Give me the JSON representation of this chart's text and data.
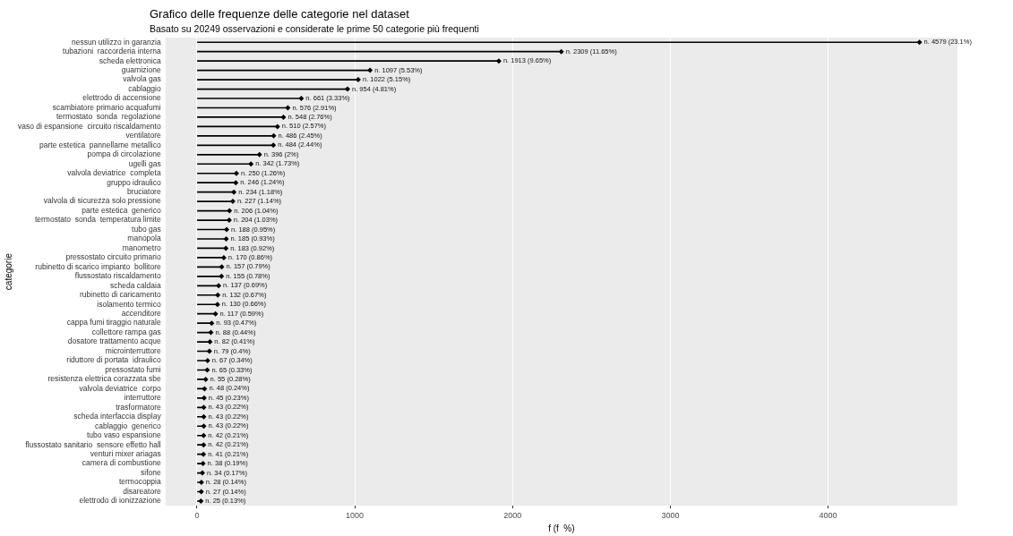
{
  "chart_data": {
    "type": "lollipop",
    "orientation": "horizontal",
    "title": "Grafico delle frequenze delle categorie nel dataset",
    "subtitle": "Basato su 20249 osservazioni e considerate le prime 50 categorie più frequenti",
    "xlabel": "f (f  %)",
    "ylabel": "categorie",
    "categories": [
      "nessun utilizzo in garanzia",
      "tubazioni  raccorderia interna",
      "scheda elettronica",
      "guarnizione",
      "valvola gas",
      "cablaggio",
      "elettrodo di accensione",
      "scambiatore primario acquafumi",
      "termostato  sonda  regolazione",
      "vaso di espansione  circuito riscaldamento",
      "ventilatore",
      "parte estetica  pannellame metallico",
      "pompa di circolazione",
      "ugelli gas",
      "valvola deviatrice  completa",
      "gruppo idraulico",
      "bruciatore",
      "valvola di sicurezza solo pressione",
      "parte estetica  generico",
      "termostato  sonda  temperatura limite",
      "tubo gas",
      "manopola",
      "manometro",
      "pressostato circuito primario",
      "rubinetto di scarico impianto  bollitore",
      "flussostato riscaldamento",
      "scheda caldaia",
      "rubinetto di caricamento",
      "isolamento termico",
      "accenditore",
      "cappa fumi tiraggio naturale",
      "collettore rampa gas",
      "dosatore trattamento acque",
      "microinterruttore",
      "riduttore di portata  idraulico",
      "pressostato fumi",
      "resistenza elettrica corazzata sbe",
      "valvola deviatrice  corpo",
      "interruttore",
      "trasformatore",
      "scheda interfaccia display",
      "cablaggio  generico",
      "tubo vaso espansione",
      "flussostato sanitario  sensore effetto hall",
      "venturi mixer ariagas",
      "camera di combustione",
      "sifone",
      "termocoppia",
      "disareatore",
      "elettrodo di ionizzazione"
    ],
    "values": [
      4579,
      2309,
      1913,
      1097,
      1022,
      954,
      661,
      576,
      548,
      510,
      486,
      484,
      396,
      342,
      250,
      246,
      234,
      227,
      206,
      204,
      188,
      185,
      183,
      170,
      157,
      155,
      137,
      132,
      130,
      117,
      93,
      88,
      82,
      79,
      67,
      65,
      55,
      48,
      45,
      43,
      43,
      43,
      42,
      42,
      41,
      38,
      34,
      28,
      27,
      25
    ],
    "value_labels": [
      "n. 4579 (23.1%)",
      "n. 2309 (11.65%)",
      "n. 1913 (9.65%)",
      "n. 1097 (5.53%)",
      "n. 1022 (5.15%)",
      "n. 954 (4.81%)",
      "n. 661 (3.33%)",
      "n. 576 (2.91%)",
      "n. 548 (2.76%)",
      "n. 510 (2.57%)",
      "n. 486 (2.45%)",
      "n. 484 (2.44%)",
      "n. 396 (2%)",
      "n. 342 (1.73%)",
      "n. 250 (1.26%)",
      "n. 246 (1.24%)",
      "n. 234 (1.18%)",
      "n. 227 (1.14%)",
      "n. 206 (1.04%)",
      "n. 204 (1.03%)",
      "n. 188 (0.95%)",
      "n. 185 (0.93%)",
      "n. 183 (0.92%)",
      "n. 170 (0.86%)",
      "n. 157 (0.79%)",
      "n. 155 (0.78%)",
      "n. 137 (0.69%)",
      "n. 132 (0.67%)",
      "n. 130 (0.66%)",
      "n. 117 (0.59%)",
      "n. 93 (0.47%)",
      "n. 88 (0.44%)",
      "n. 82 (0.41%)",
      "n. 79 (0.4%)",
      "n. 67 (0.34%)",
      "n. 65 (0.33%)",
      "n. 55 (0.28%)",
      "n. 48 (0.24%)",
      "n. 45 (0.23%)",
      "n. 43 (0.22%)",
      "n. 43 (0.22%)",
      "n. 43 (0.22%)",
      "n. 42 (0.21%)",
      "n. 42 (0.21%)",
      "n. 41 (0.21%)",
      "n. 38 (0.19%)",
      "n. 34 (0.17%)",
      "n. 28 (0.14%)",
      "n. 27 (0.14%)",
      "n. 25 (0.13%)"
    ],
    "color": "#000000",
    "marker": "diamond",
    "xlim": [
      -200,
      4820
    ],
    "xticks": [
      0,
      1000,
      2000,
      3000,
      4000
    ],
    "grid": "x",
    "legend": false
  }
}
